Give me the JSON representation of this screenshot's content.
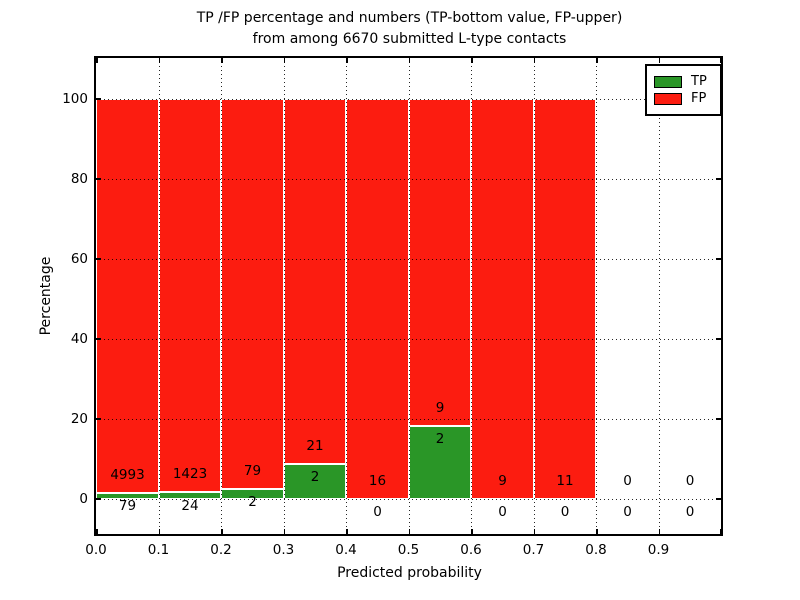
{
  "figure": {
    "title_line1": "TP /FP percentage and numbers (TP-bottom value, FP-upper)",
    "title_line2": "from among 6670 submitted L-type contacts"
  },
  "chart_data": {
    "type": "bar",
    "stacked": true,
    "title": "TP /FP percentage and numbers (TP-bottom value, FP-upper) from among 6670 submitted L-type contacts",
    "xlabel": "Predicted probability",
    "ylabel": "Percentage",
    "total_submitted": 6670,
    "bin_edges": [
      0.0,
      0.1,
      0.2,
      0.3,
      0.4,
      0.5,
      0.6,
      0.7,
      0.8,
      0.9,
      1.0
    ],
    "categories": [
      "0.0-0.1",
      "0.1-0.2",
      "0.2-0.3",
      "0.3-0.4",
      "0.4-0.5",
      "0.5-0.6",
      "0.6-0.7",
      "0.7-0.8",
      "0.8-0.9",
      "0.9-1.0"
    ],
    "series": [
      {
        "name": "TP",
        "color": "#2a9627",
        "counts": [
          79,
          24,
          2,
          2,
          0,
          2,
          0,
          0,
          0,
          0
        ]
      },
      {
        "name": "FP",
        "color": "#fc1c10",
        "counts": [
          4993,
          1423,
          79,
          21,
          16,
          9,
          9,
          11,
          0,
          0
        ]
      }
    ],
    "tp_bar_percent_height": [
      1.56,
      1.66,
      2.47,
      8.7,
      0,
      18.18,
      0,
      0,
      0,
      0
    ],
    "stack_total_percent": 100,
    "yticks": [
      0,
      20,
      40,
      60,
      80,
      100
    ],
    "xtick_labels": [
      "0.0",
      "0.1",
      "0.2",
      "0.3",
      "0.4",
      "0.5",
      "0.6",
      "0.7",
      "0.8",
      "0.9"
    ],
    "ylim": [
      -8.75,
      110.25
    ],
    "xlim": [
      0.0,
      1.0
    ],
    "grid": "dotted-black-both-axes",
    "legend": {
      "position": "upper right",
      "entries": [
        "TP",
        "FP"
      ]
    }
  },
  "legend": {
    "tp_label": "TP",
    "fp_label": "FP"
  },
  "colors": {
    "tp": "#2a9627",
    "fp": "#fc1c10",
    "bar_edge": "#ffffff",
    "grid": "#000000",
    "text": "#000000",
    "background": "#ffffff"
  }
}
